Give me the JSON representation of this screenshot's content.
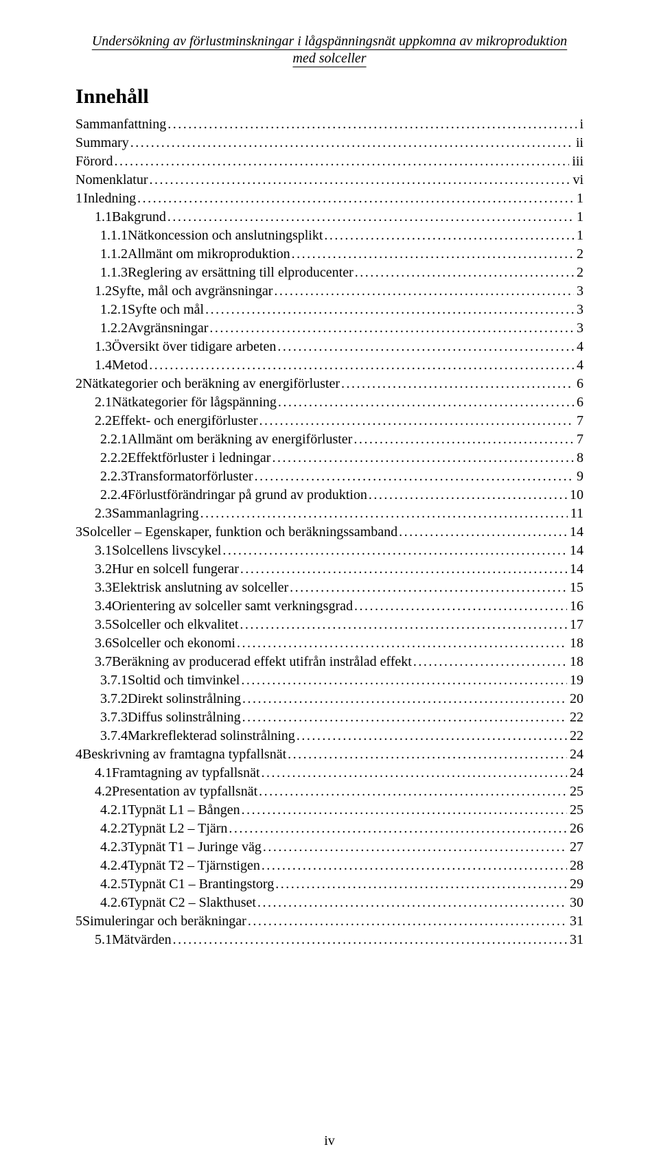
{
  "header": {
    "line1": "Undersökning av förlustminskningar i lågspänningsnät uppkomna av mikroproduktion",
    "line2": "med solceller"
  },
  "toc_title": "Innehåll",
  "toc": [
    {
      "level": 0,
      "num": "",
      "label": "Sammanfattning",
      "page": "i"
    },
    {
      "level": 0,
      "num": "",
      "label": "Summary",
      "page": "ii"
    },
    {
      "level": 0,
      "num": "",
      "label": "Förord",
      "page": "iii"
    },
    {
      "level": 0,
      "num": "",
      "label": "Nomenklatur",
      "page": "vi"
    },
    {
      "level": "ch",
      "num": "1",
      "label": "Inledning",
      "page": "1"
    },
    {
      "level": 1,
      "num": "1.1",
      "label": "Bakgrund",
      "page": "1"
    },
    {
      "level": 2,
      "num": "1.1.1",
      "label": "Nätkoncession och anslutningsplikt",
      "page": "1"
    },
    {
      "level": 2,
      "num": "1.1.2",
      "label": "Allmänt om mikroproduktion",
      "page": "2"
    },
    {
      "level": 2,
      "num": "1.1.3",
      "label": "Reglering av ersättning till elproducenter",
      "page": "2"
    },
    {
      "level": 1,
      "num": "1.2",
      "label": "Syfte, mål och avgränsningar",
      "page": "3"
    },
    {
      "level": 2,
      "num": "1.2.1",
      "label": "Syfte och mål",
      "page": "3"
    },
    {
      "level": 2,
      "num": "1.2.2",
      "label": "Avgränsningar",
      "page": "3"
    },
    {
      "level": 1,
      "num": "1.3",
      "label": "Översikt över tidigare arbeten",
      "page": "4"
    },
    {
      "level": 1,
      "num": "1.4",
      "label": "Metod",
      "page": "4"
    },
    {
      "level": "ch",
      "num": "2",
      "label": "Nätkategorier och beräkning av energiförluster",
      "page": "6"
    },
    {
      "level": 1,
      "num": "2.1",
      "label": "Nätkategorier för lågspänning",
      "page": "6"
    },
    {
      "level": 1,
      "num": "2.2",
      "label": "Effekt- och energiförluster",
      "page": "7"
    },
    {
      "level": 2,
      "num": "2.2.1",
      "label": "Allmänt om beräkning av energiförluster",
      "page": "7"
    },
    {
      "level": 2,
      "num": "2.2.2",
      "label": "Effektförluster i ledningar",
      "page": "8"
    },
    {
      "level": 2,
      "num": "2.2.3",
      "label": "Transformatorförluster",
      "page": "9"
    },
    {
      "level": 2,
      "num": "2.2.4",
      "label": "Förlustförändringar på grund av produktion",
      "page": "10"
    },
    {
      "level": 1,
      "num": "2.3",
      "label": "Sammanlagring",
      "page": "11"
    },
    {
      "level": "ch",
      "num": "3",
      "label": "Solceller – Egenskaper, funktion och beräkningssamband",
      "page": "14"
    },
    {
      "level": 1,
      "num": "3.1",
      "label": "Solcellens livscykel",
      "page": "14"
    },
    {
      "level": 1,
      "num": "3.2",
      "label": "Hur en solcell fungerar",
      "page": "14"
    },
    {
      "level": 1,
      "num": "3.3",
      "label": "Elektrisk anslutning av solceller",
      "page": "15"
    },
    {
      "level": 1,
      "num": "3.4",
      "label": "Orientering av solceller samt verkningsgrad",
      "page": "16"
    },
    {
      "level": 1,
      "num": "3.5",
      "label": "Solceller och elkvalitet",
      "page": "17"
    },
    {
      "level": 1,
      "num": "3.6",
      "label": "Solceller och ekonomi",
      "page": "18"
    },
    {
      "level": 1,
      "num": "3.7",
      "label": "Beräkning av producerad effekt utifrån instrålad effekt",
      "page": "18"
    },
    {
      "level": 2,
      "num": "3.7.1",
      "label": "Soltid och timvinkel",
      "page": "19"
    },
    {
      "level": 2,
      "num": "3.7.2",
      "label": "Direkt solinstrålning",
      "page": "20"
    },
    {
      "level": 2,
      "num": "3.7.3",
      "label": "Diffus solinstrålning",
      "page": "22"
    },
    {
      "level": 2,
      "num": "3.7.4",
      "label": "Markreflekterad solinstrålning",
      "page": "22"
    },
    {
      "level": "ch",
      "num": "4",
      "label": "Beskrivning av framtagna typfallsnät",
      "page": "24"
    },
    {
      "level": 1,
      "num": "4.1",
      "label": "Framtagning av typfallsnät",
      "page": "24"
    },
    {
      "level": 1,
      "num": "4.2",
      "label": "Presentation av typfallsnät",
      "page": "25"
    },
    {
      "level": 2,
      "num": "4.2.1",
      "label": "Typnät L1 – Bången",
      "page": "25"
    },
    {
      "level": 2,
      "num": "4.2.2",
      "label": "Typnät L2 – Tjärn",
      "page": "26"
    },
    {
      "level": 2,
      "num": "4.2.3",
      "label": "Typnät T1 – Juringe väg",
      "page": "27"
    },
    {
      "level": 2,
      "num": "4.2.4",
      "label": "Typnät T2 – Tjärnstigen",
      "page": "28"
    },
    {
      "level": 2,
      "num": "4.2.5",
      "label": "Typnät C1 – Brantingstorg",
      "page": "29"
    },
    {
      "level": 2,
      "num": "4.2.6",
      "label": "Typnät C2 – Slakthuset",
      "page": "30"
    },
    {
      "level": "ch",
      "num": "5",
      "label": "Simuleringar och beräkningar",
      "page": "31"
    },
    {
      "level": 1,
      "num": "5.1",
      "label": "Mätvärden",
      "page": "31"
    }
  ],
  "footer": "iv"
}
